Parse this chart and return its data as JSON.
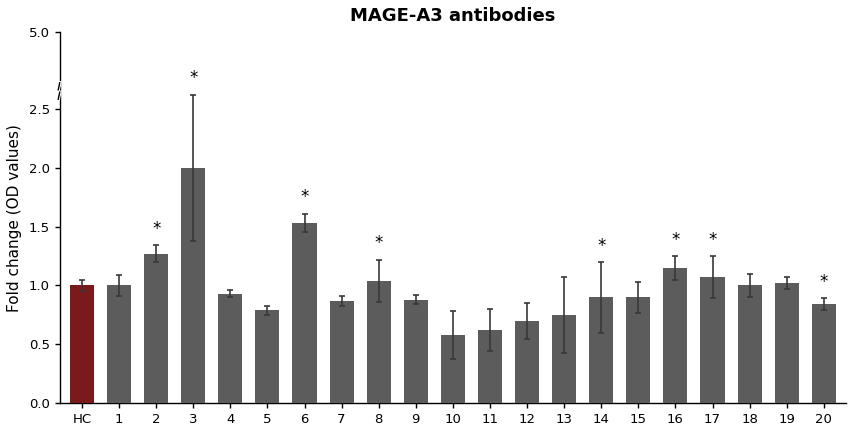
{
  "title": "MAGE-A3 antibodies",
  "ylabel": "Fold change (OD values)",
  "categories": [
    "HC",
    "1",
    "2",
    "3",
    "4",
    "5",
    "6",
    "7",
    "8",
    "9",
    "10",
    "11",
    "12",
    "13",
    "14",
    "15",
    "16",
    "17",
    "18",
    "19",
    "20"
  ],
  "values": [
    1.0,
    1.0,
    1.27,
    2.0,
    0.93,
    0.79,
    1.53,
    0.87,
    1.04,
    0.88,
    0.58,
    0.62,
    0.7,
    0.75,
    0.9,
    0.9,
    1.15,
    1.07,
    1.0,
    1.02,
    0.84
  ],
  "errors": [
    0.05,
    0.09,
    0.07,
    0.62,
    0.03,
    0.04,
    0.08,
    0.04,
    0.18,
    0.04,
    0.2,
    0.18,
    0.15,
    0.32,
    0.3,
    0.13,
    0.1,
    0.18,
    0.1,
    0.05,
    0.05
  ],
  "significant": [
    false,
    false,
    true,
    true,
    false,
    false,
    true,
    false,
    true,
    false,
    false,
    false,
    false,
    false,
    true,
    false,
    true,
    true,
    false,
    false,
    true
  ],
  "hc_color": "#7B1A1A",
  "bar_color": "#5C5C5C",
  "ylim": [
    0.0,
    3.15
  ],
  "ytick_positions": [
    0.0,
    0.5,
    1.0,
    1.5,
    2.0,
    2.5,
    3.15
  ],
  "ytick_labels": [
    "0.0",
    "0.5",
    "1.0",
    "1.5",
    "2.0",
    "2.5",
    "5.0"
  ],
  "background_color": "#ffffff",
  "title_fontsize": 13,
  "axis_label_fontsize": 11,
  "tick_fontsize": 9.5
}
